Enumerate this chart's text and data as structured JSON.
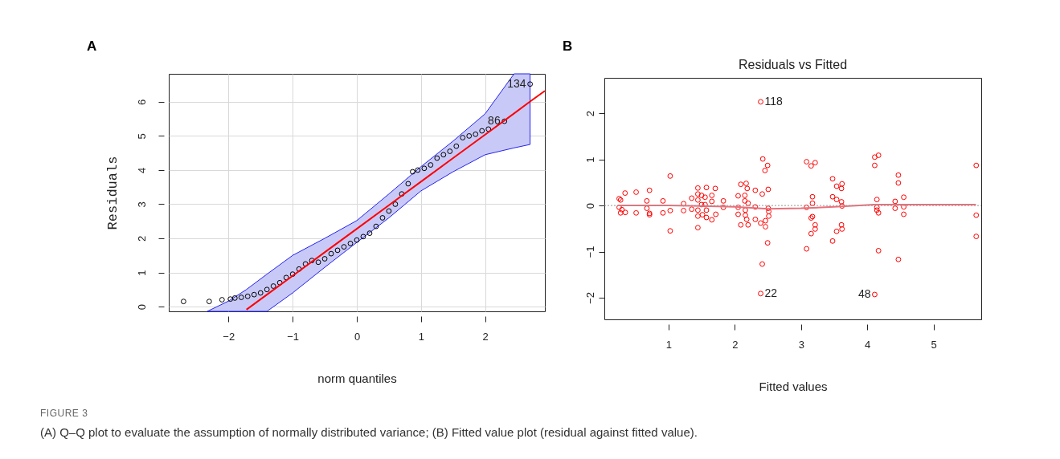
{
  "chart_data": [
    {
      "type": "scatter",
      "xlabel": "norm quantiles",
      "ylabel": "Residuals",
      "xlim": [
        -2.93,
        2.93
      ],
      "ylim": [
        -0.14,
        6.82
      ],
      "xticks": [
        -2,
        -1,
        0,
        1,
        2
      ],
      "yticks": [
        0,
        1,
        2,
        3,
        4,
        5,
        6
      ],
      "grid": true,
      "series": [
        {
          "type": "scatter",
          "marker": "circle",
          "color": "#000000",
          "x": [
            -2.7,
            -2.3,
            -2.1,
            -1.97,
            -1.9,
            -1.8,
            -1.7,
            -1.6,
            -1.5,
            -1.4,
            -1.3,
            -1.2,
            -1.1,
            -1.0,
            -0.9,
            -0.8,
            -0.7,
            -0.6,
            -0.5,
            -0.4,
            -0.3,
            -0.2,
            -0.1,
            0,
            0.1,
            0.2,
            0.3,
            0.4,
            0.5,
            0.6,
            0.7,
            0.8,
            0.87,
            0.95,
            1.05,
            1.15,
            1.25,
            1.35,
            1.45,
            1.55,
            1.65,
            1.75,
            1.85,
            1.95,
            2.05,
            2.3,
            2.7
          ],
          "values": [
            0.15,
            0.15,
            0.2,
            0.22,
            0.25,
            0.27,
            0.3,
            0.35,
            0.4,
            0.5,
            0.6,
            0.7,
            0.85,
            0.95,
            1.1,
            1.25,
            1.35,
            1.3,
            1.4,
            1.55,
            1.65,
            1.75,
            1.85,
            1.95,
            2.05,
            2.15,
            2.35,
            2.6,
            2.8,
            3.0,
            3.3,
            3.6,
            3.95,
            4.0,
            4.05,
            4.15,
            4.35,
            4.45,
            4.55,
            4.7,
            4.95,
            5.0,
            5.05,
            5.15,
            5.2,
            5.43,
            6.52
          ]
        },
        {
          "type": "line",
          "color": "#ff0000",
          "x": [
            -2.33,
            -2,
            -1.72,
            -1.4,
            -1,
            -0.5,
            0,
            0.5,
            1,
            1.5,
            2,
            2.45,
            2.7,
            2.93
          ],
          "values": [
            null,
            null,
            -0.09,
            0.35,
            0.9,
            1.59,
            2.28,
            2.97,
            3.66,
            4.35,
            5.04,
            5.66,
            6.01,
            6.32
          ],
          "lower": [
            -0.14,
            -0.14,
            -0.14,
            -0.14,
            0.4,
            1.15,
            1.88,
            2.6,
            3.39,
            3.95,
            4.45,
            4.65,
            4.75,
            null
          ],
          "upper": [
            -0.14,
            0.16,
            0.5,
            0.95,
            1.5,
            2.0,
            2.52,
            3.3,
            4.1,
            4.85,
            5.65,
            6.82,
            6.82,
            null
          ]
        }
      ],
      "annotations": [
        "A",
        {
          "text": "134",
          "x": 2.7,
          "y": 6.52
        },
        {
          "text": "86",
          "x": 2.3,
          "y": 5.43
        },
        "FIGURE 3",
        "(A) Q–Q plot to evaluate the assumption of normally distributed variance; (B) Fitted value plot (residual against fitted value)."
      ]
    },
    {
      "type": "scatter",
      "title": "Residuals vs Fitted",
      "xlabel": "Fitted values",
      "xlim": [
        0.03,
        5.72
      ],
      "ylim": [
        -2.47,
        2.77
      ],
      "xticks": [
        1,
        2,
        3,
        4,
        5
      ],
      "yticks": [
        -2,
        -1,
        0,
        1,
        2
      ],
      "ref_lines": [
        {
          "axis": "y",
          "value": 0,
          "color": "#999999",
          "line_style": "dotted"
        }
      ],
      "series": [
        {
          "type": "scatter",
          "marker": "circle",
          "color": "#ff0000",
          "x": [
            0.254,
            0.275,
            0.254,
            0.275,
            0.295,
            0.343,
            0.347,
            0.51,
            0.51,
            0.672,
            0.672,
            0.712,
            0.712,
            0.712,
            0.915,
            0.915,
            1.024,
            1.024,
            1.024,
            1.227,
            1.227,
            1.349,
            1.349,
            1.442,
            1.442,
            1.442,
            1.442,
            1.442,
            1.442,
            1.498,
            1.498,
            1.511,
            1.551,
            1.551,
            1.571,
            1.571,
            1.571,
            1.653,
            1.653,
            1.653,
            1.705,
            1.713,
            1.827,
            1.827,
            2.05,
            2.05,
            2.05,
            2.09,
            2.09,
            2.151,
            2.151,
            2.159,
            2.159,
            2.171,
            2.179,
            2.187,
            2.2,
            2.2,
            2.309,
            2.309,
            2.309,
            2.39,
            2.39,
            2.414,
            2.422,
            2.455,
            2.463,
            2.463,
            2.495,
            2.504,
            2.504,
            2.512,
            2.512,
            2.495,
            2.414,
            2.39,
            3.083,
            3.152,
            3.213,
            3.083,
            3.152,
            3.172,
            3.172,
            3.172,
            3.213,
            3.213,
            3.152,
            3.083,
            3.476,
            3.537,
            3.618,
            3.61,
            3.476,
            3.537,
            3.61,
            3.618,
            3.61,
            3.618,
            3.537,
            3.476,
            4.112,
            4.169,
            4.112,
            4.145,
            4.145,
            4.145,
            4.169,
            4.169,
            4.112,
            4.469,
            4.469,
            4.42,
            4.42,
            4.55,
            4.55,
            4.55,
            4.469,
            5.644,
            5.644,
            5.644
          ],
          "values": [
            0.15,
            0.12,
            -0.04,
            -0.16,
            -0.09,
            0.27,
            -0.15,
            0.29,
            -0.16,
            0.1,
            -0.06,
            0.33,
            -0.17,
            -0.2,
            0.1,
            -0.16,
            0.64,
            -0.11,
            -0.55,
            0.04,
            -0.11,
            0.16,
            -0.08,
            0.38,
            0.25,
            0.12,
            -0.1,
            -0.23,
            -0.48,
            0.22,
            0.02,
            -0.2,
            0.18,
            0.02,
            0.39,
            -0.1,
            -0.26,
            0.22,
            0.09,
            -0.31,
            0.37,
            -0.19,
            0.1,
            -0.04,
            0.21,
            -0.04,
            -0.19,
            0.46,
            -0.42,
            0.22,
            0.1,
            -0.1,
            -0.21,
            0.48,
            -0.3,
            0.37,
            0.05,
            -0.42,
            0.33,
            -0.03,
            -0.3,
            2.25,
            -0.38,
            0.25,
            1.01,
            0.76,
            -0.33,
            -0.46,
            0.87,
            0.35,
            -0.06,
            -0.13,
            -0.23,
            -0.81,
            -1.27,
            -1.91,
            0.95,
            0.86,
            0.93,
            -0.04,
            -0.27,
            -0.24,
            0.05,
            0.19,
            -0.42,
            -0.51,
            -0.61,
            -0.94,
            0.58,
            0.42,
            0.47,
            0.37,
            0.19,
            0.13,
            0.08,
            -0.01,
            -0.42,
            -0.51,
            -0.56,
            -0.77,
            1.05,
            1.09,
            0.87,
            0.13,
            -0.04,
            -0.1,
            -0.16,
            -0.98,
            -1.93,
            0.66,
            0.49,
            0.09,
            -0.06,
            0.18,
            -0.03,
            -0.19,
            -1.17,
            0.87,
            -0.21,
            -0.67
          ]
        },
        {
          "type": "line",
          "color": "#e8707a",
          "x": [
            0.25,
            1.0,
            1.5,
            2.0,
            2.5,
            3.0,
            3.5,
            4.1,
            5.64
          ],
          "values": [
            0.0,
            0.0,
            -0.01,
            -0.03,
            -0.07,
            -0.06,
            -0.03,
            0.02,
            0.02
          ]
        }
      ],
      "annotations": [
        "B",
        {
          "text": "118",
          "x": 2.39,
          "y": 2.25
        },
        {
          "text": "22",
          "x": 2.39,
          "y": -1.91
        },
        {
          "text": "48",
          "x": 4.112,
          "y": -1.93
        }
      ]
    }
  ]
}
